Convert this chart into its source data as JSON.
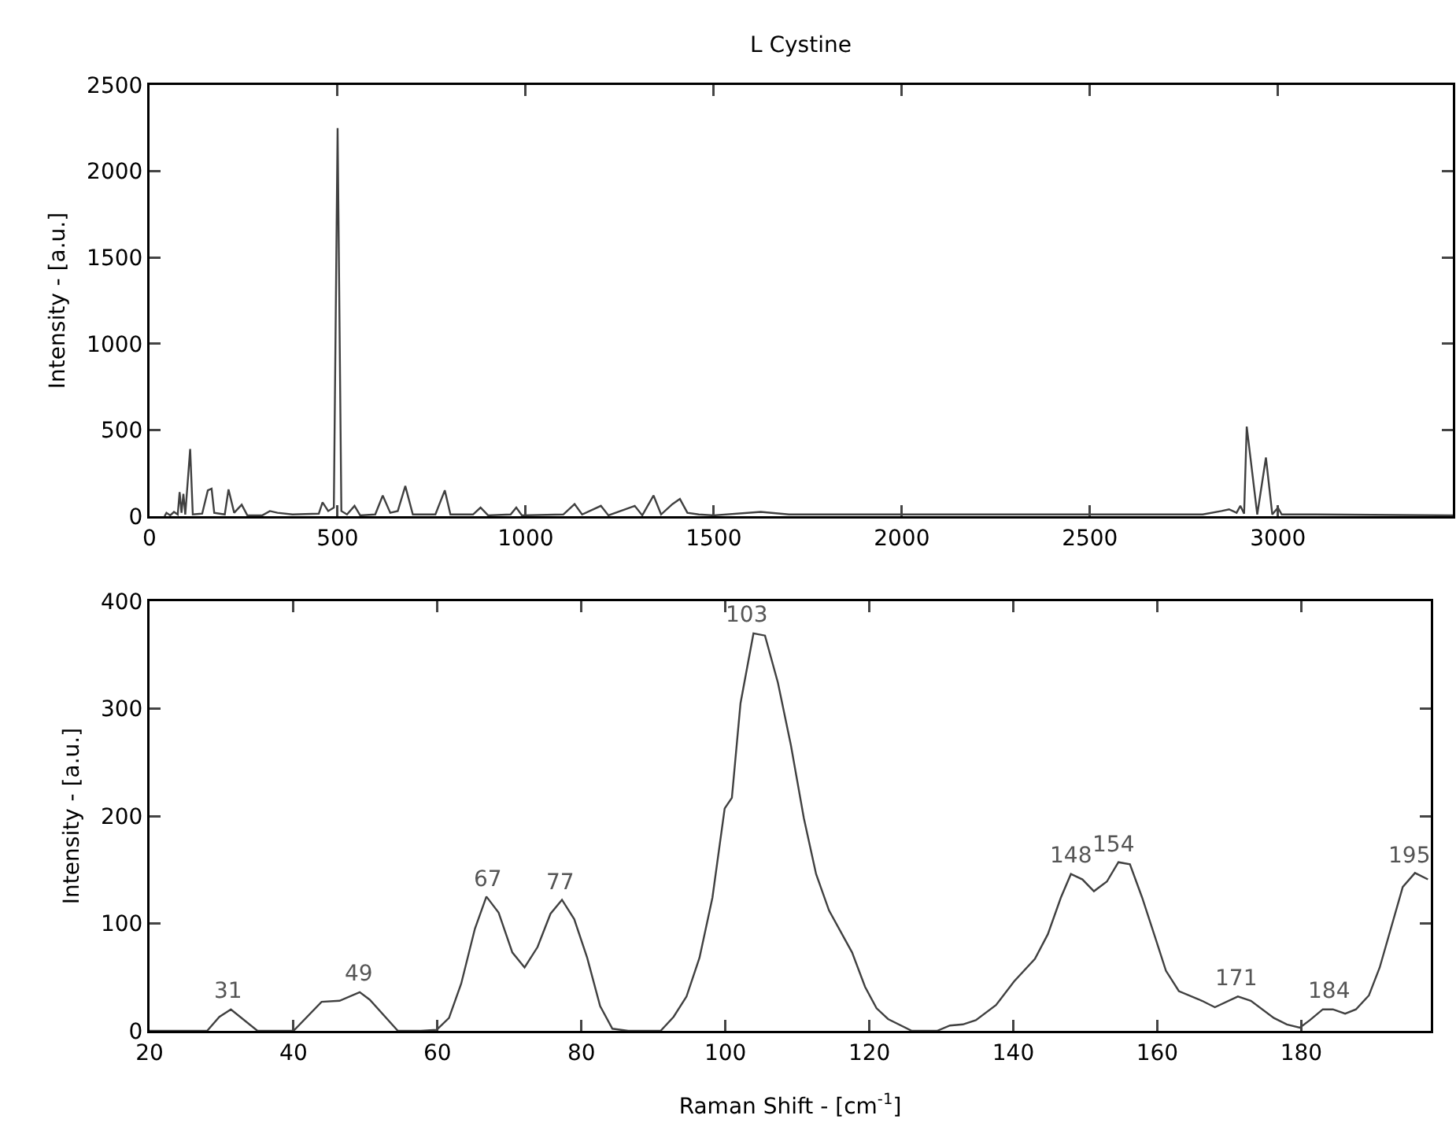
{
  "chart_data": [
    {
      "type": "line",
      "title": "L Cystine",
      "ylabel": "Intensity - [a.u.]",
      "color": "#404040",
      "x": [
        40,
        45,
        55,
        65,
        75,
        80,
        85,
        90,
        95,
        108,
        115,
        140,
        155,
        165,
        172,
        200,
        210,
        225,
        245,
        260,
        300,
        320,
        340,
        380,
        450,
        460,
        475,
        490,
        500,
        510,
        525,
        545,
        560,
        600,
        620,
        640,
        660,
        680,
        700,
        760,
        785,
        800,
        860,
        880,
        900,
        960,
        975,
        990,
        1100,
        1130,
        1150,
        1200,
        1220,
        1290,
        1310,
        1340,
        1360,
        1390,
        1410,
        1430,
        1460,
        1500,
        1625,
        1700,
        1800,
        2000,
        2500,
        2800,
        2850,
        2870,
        2890,
        2900,
        2910,
        2917,
        2945,
        2968,
        2985,
        3000,
        3010,
        3100,
        3465
      ],
      "values": [
        0,
        20,
        5,
        25,
        10,
        140,
        20,
        130,
        10,
        390,
        10,
        15,
        150,
        160,
        20,
        10,
        155,
        20,
        67,
        5,
        5,
        30,
        20,
        10,
        15,
        80,
        30,
        50,
        2250,
        30,
        10,
        60,
        5,
        10,
        120,
        20,
        30,
        175,
        10,
        10,
        150,
        10,
        10,
        50,
        5,
        10,
        50,
        5,
        10,
        70,
        10,
        60,
        5,
        60,
        5,
        120,
        10,
        70,
        100,
        20,
        10,
        5,
        25,
        10,
        10,
        10,
        10,
        10,
        30,
        40,
        20,
        60,
        15,
        520,
        10,
        340,
        10,
        50,
        10,
        10,
        5
      ],
      "xlim": [
        0,
        3465
      ],
      "ylim": [
        0,
        2500
      ],
      "xticks": [
        0,
        500,
        1000,
        1500,
        2000,
        2500,
        3000
      ],
      "yticks": [
        0,
        500,
        1000,
        1500,
        2000,
        2500
      ]
    },
    {
      "type": "line",
      "xlabel": "Raman Shift - [cm$^{-1}$]",
      "ylabel": "Intensity - [a.u.]",
      "color": "#404040",
      "x": [
        20,
        28,
        29.7,
        31.3,
        35,
        40,
        43.9,
        46.4,
        49.2,
        50.6,
        54.5,
        57.7,
        59.9,
        61.6,
        63.3,
        65.2,
        66.8,
        68.5,
        70.4,
        72.1,
        73.9,
        75.7,
        77.3,
        79,
        80.8,
        82.6,
        84.3,
        86.5,
        91,
        92.8,
        94.6,
        96.4,
        98.2,
        99.9,
        100.9,
        102.1,
        103.9,
        105.5,
        107.3,
        109.1,
        110.9,
        112.6,
        114.4,
        117.6,
        119.4,
        121,
        122.6,
        125.9,
        129.4,
        131.2,
        133,
        134.8,
        137.6,
        140.1,
        143,
        144.8,
        146.6,
        148,
        149.6,
        151.2,
        153,
        154.6,
        156.2,
        157.9,
        159.8,
        161.2,
        163,
        166.2,
        168,
        171.2,
        173,
        176.2,
        178,
        179.8,
        181.2,
        183,
        184.4,
        186.1,
        187.6,
        189.4,
        190.9,
        194.1,
        195.8,
        197.6
      ],
      "values": [
        0,
        0,
        13,
        20,
        0,
        0,
        27,
        28,
        36,
        29,
        0,
        0,
        1,
        12,
        44,
        95,
        125,
        110,
        73,
        59,
        78,
        109,
        122,
        104,
        68,
        23,
        2,
        0,
        0,
        13,
        32,
        68,
        124,
        207,
        217,
        305,
        370,
        368,
        324,
        266,
        198,
        146,
        112,
        73,
        41,
        21,
        11,
        0,
        0,
        5,
        6,
        10,
        24,
        46,
        67,
        90,
        124,
        146,
        141,
        130,
        139,
        157,
        155,
        124,
        85,
        56,
        37,
        28,
        22,
        32,
        28,
        12,
        6,
        3,
        10,
        20,
        20,
        16,
        20,
        33,
        59,
        134,
        147,
        141
      ],
      "xlim": [
        20,
        198
      ],
      "ylim": [
        0,
        400
      ],
      "xticks": [
        20,
        40,
        60,
        80,
        100,
        120,
        140,
        160,
        180
      ],
      "yticks": [
        0,
        100,
        200,
        300,
        400
      ],
      "annotations": [
        {
          "text": "31",
          "x": 31,
          "y": 20
        },
        {
          "text": "49",
          "x": 49,
          "y": 36
        },
        {
          "text": "67",
          "x": 67,
          "y": 125
        },
        {
          "text": "77",
          "x": 77,
          "y": 122
        },
        {
          "text": "103",
          "x": 103,
          "y": 370
        },
        {
          "text": "148",
          "x": 148,
          "y": 146
        },
        {
          "text": "154",
          "x": 154,
          "y": 157
        },
        {
          "text": "171",
          "x": 171,
          "y": 32
        },
        {
          "text": "184",
          "x": 184,
          "y": 20
        },
        {
          "text": "195",
          "x": 195,
          "y": 147
        }
      ]
    }
  ]
}
